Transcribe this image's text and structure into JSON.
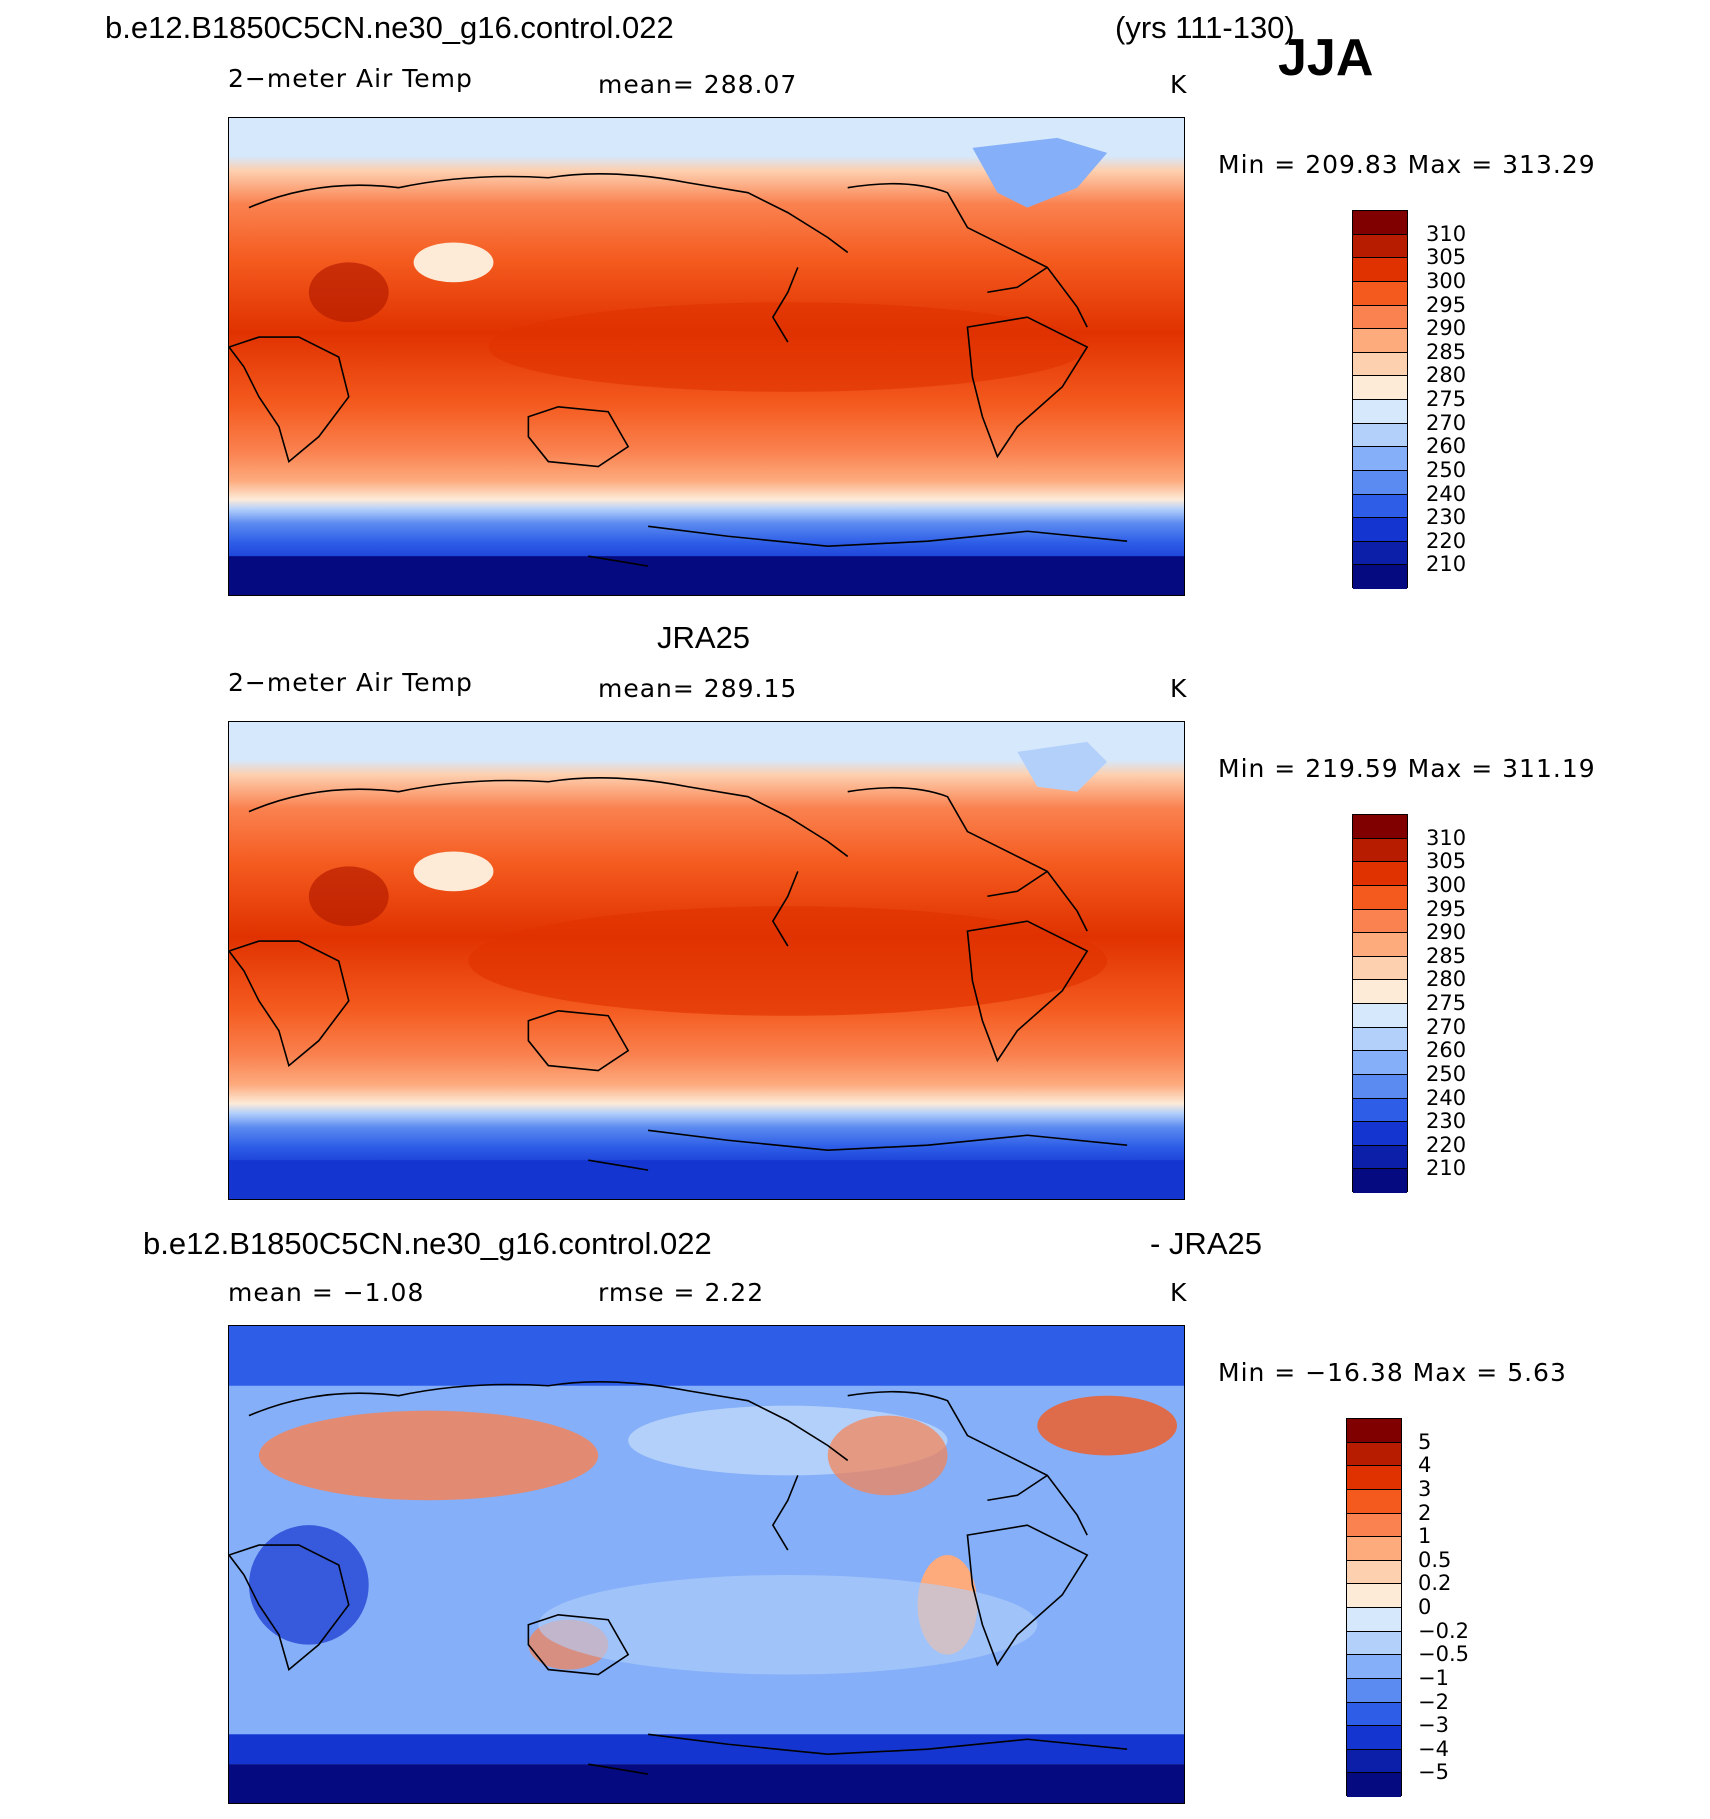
{
  "header": {
    "case_name": "b.e12.B1850C5CN.ne30_g16.control.022",
    "years": "(yrs 111-130)",
    "season": "JJA"
  },
  "panels": [
    {
      "id": "model",
      "title": "",
      "variable": "2−meter Air Temp",
      "stat_text": "mean=  288.07",
      "units": "K",
      "minmax": "Min  =  209.83  Max  =  313.29",
      "levels": [
        "310",
        "305",
        "300",
        "295",
        "290",
        "285",
        "280",
        "275",
        "270",
        "260",
        "250",
        "240",
        "230",
        "220",
        "210"
      ]
    },
    {
      "id": "obs",
      "title": "JRA25",
      "variable": "2−meter Air Temp",
      "stat_text": "mean=  289.15",
      "units": "K",
      "minmax": "Min  =  219.59  Max  =  311.19",
      "levels": [
        "310",
        "305",
        "300",
        "295",
        "290",
        "285",
        "280",
        "275",
        "270",
        "260",
        "250",
        "240",
        "230",
        "220",
        "210"
      ]
    },
    {
      "id": "diff",
      "title_left": "b.e12.B1850C5CN.ne30_g16.control.022",
      "title_right": "- JRA25",
      "variable": "mean  =    −1.08",
      "stat_text": "rmse  =     2.22",
      "units": "K",
      "minmax": "Min  =  −16.38  Max  =     5.63",
      "levels": [
        "5",
        "4",
        "3",
        "2",
        "1",
        "0.5",
        "0.2",
        "0",
        "−0.2",
        "−0.5",
        "−1",
        "−2",
        "−3",
        "−4",
        "−5"
      ]
    }
  ],
  "colors": {
    "abs_scale": [
      "#800000",
      "#b71c00",
      "#e03200",
      "#f45a1e",
      "#fa8250",
      "#fdaa7d",
      "#fdd0b0",
      "#fdebd8",
      "#d6e8fb",
      "#b3d0fb",
      "#85aff8",
      "#5b8af0",
      "#2e5ee8",
      "#1535d0",
      "#0b1fa8",
      "#050a80"
    ],
    "diff_scale": [
      "#800000",
      "#b71c00",
      "#e03200",
      "#f45a1e",
      "#fa8250",
      "#fdaa7d",
      "#fdd0b0",
      "#fdebd8",
      "#d6e8fb",
      "#b3d0fb",
      "#85aff8",
      "#5b8af0",
      "#2e5ee8",
      "#1535d0",
      "#0b1fa8",
      "#050a80"
    ]
  }
}
